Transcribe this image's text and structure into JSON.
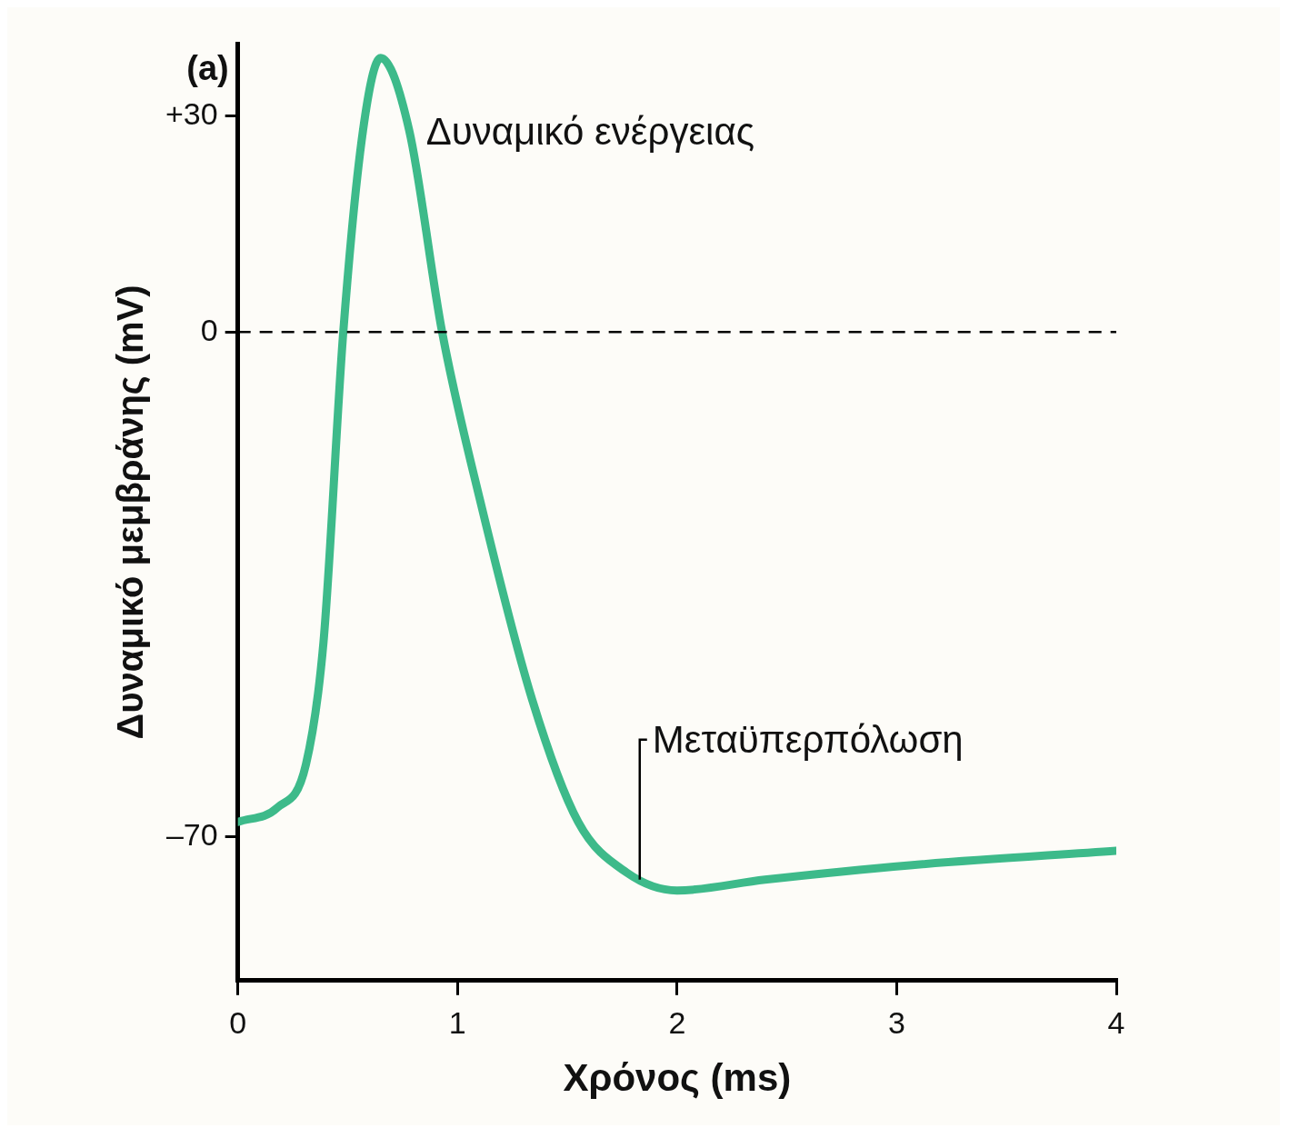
{
  "chart_data": {
    "type": "line",
    "xlabel": "Χρόνος (ms)",
    "ylabel": "Δυναμικό μεμβράνης (mV)",
    "x": [
      0,
      0.18,
      0.31,
      0.39,
      0.48,
      0.57,
      0.65,
      0.78,
      0.93,
      1.1,
      1.34,
      1.55,
      1.77,
      2.0,
      2.4,
      3.06,
      4.0
    ],
    "series": [
      {
        "color": "#3dba8a",
        "values": [
          -68,
          -66,
          -60,
          -43,
          0,
          28,
          38,
          28,
          0,
          -23,
          -51,
          -68,
          -75,
          -77.5,
          -76,
          -74,
          -72
        ]
      }
    ],
    "xlim": [
      0,
      4
    ],
    "xticks": [
      0,
      1,
      2,
      3,
      4
    ],
    "ylim": [
      -90,
      40
    ],
    "yticks": [
      {
        "value": 30,
        "label": "+30"
      },
      0,
      {
        "value": -70,
        "label": "–70"
      }
    ],
    "ref_lines": [
      {
        "axis": "y",
        "value": 0,
        "color": "#000000",
        "line_style": "dashed"
      }
    ],
    "annotations": [
      "(a)",
      {
        "text": "Δυναμικό ενέργειας",
        "x": 0.65,
        "y": 38
      },
      {
        "text": "Μεταϋπερπόλωση",
        "x": 1.83,
        "y": -76
      }
    ],
    "grid": false,
    "legend": false,
    "marker": "none",
    "line_style": "solid"
  }
}
